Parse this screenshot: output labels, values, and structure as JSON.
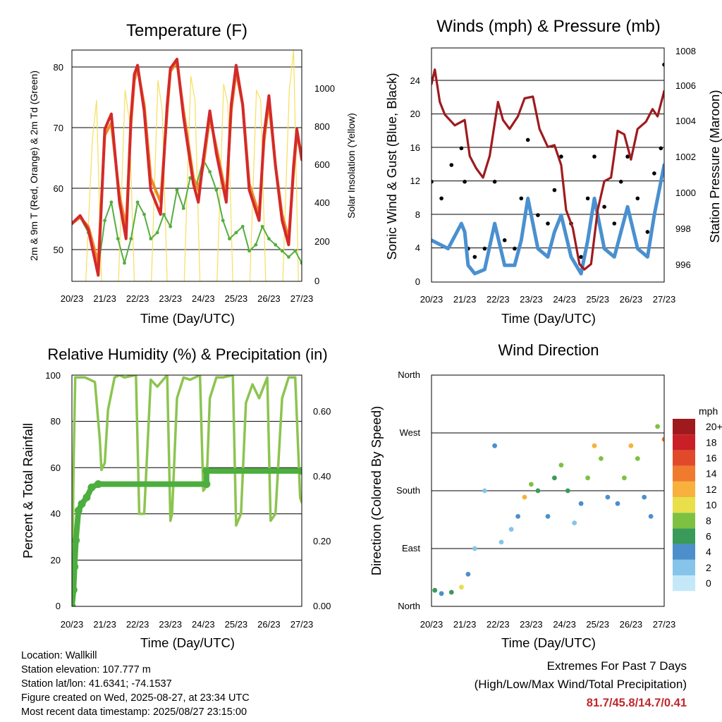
{
  "panels": {
    "temperature": {
      "title": "Temperature (F)",
      "ylabel_left": "2m & 9m T (Red, Orange) & 2m Td (Green)",
      "ylabel_right": "Solar Insolation (Yellow)",
      "xlabel": "Time (Day/UTC)",
      "left_ticks": [
        "50",
        "60",
        "70",
        "80"
      ],
      "right_ticks": [
        "0",
        "200",
        "400",
        "600",
        "800",
        "1000"
      ]
    },
    "winds": {
      "title": "Winds (mph) & Pressure (mb)",
      "ylabel_left": "Sonic Wind & Gust (Blue, Black)",
      "ylabel_right": "Station Pressure (Maroon)",
      "xlabel": "Time (Day/UTC)",
      "left_ticks": [
        "0",
        "4",
        "8",
        "12",
        "16",
        "20",
        "24"
      ],
      "right_ticks": [
        "996",
        "998",
        "1000",
        "1002",
        "1004",
        "1006",
        "1008"
      ]
    },
    "humidity": {
      "title": "Relative Humidity (%) & Precipitation (in)",
      "ylabel_left": "Percent & Total Rainfall",
      "xlabel": "Time (Day/UTC)",
      "left_ticks": [
        "0",
        "20",
        "40",
        "60",
        "80",
        "100"
      ],
      "right_ticks": [
        "0.00",
        "0.20",
        "0.40",
        "0.60"
      ]
    },
    "direction": {
      "title": "Wind Direction",
      "ylabel_left": "Direction (Colored By Speed)",
      "xlabel": "Time (Day/UTC)",
      "left_ticks": [
        "North",
        "East",
        "South",
        "West",
        "North"
      ]
    }
  },
  "time_ticks": [
    "20/23",
    "21/23",
    "22/23",
    "23/23",
    "24/23",
    "25/23",
    "26/23",
    "27/23"
  ],
  "colorbar": {
    "unit": "mph",
    "labels": [
      "0",
      "2",
      "4",
      "6",
      "8",
      "10",
      "12",
      "14",
      "16",
      "18",
      "20+"
    ],
    "colors": [
      "#c4e8f8",
      "#86c4ea",
      "#4c8fcb",
      "#3a9a5a",
      "#7dc142",
      "#e8df4a",
      "#f7b13c",
      "#f07a2d",
      "#e04a2a",
      "#c82026",
      "#9e1a1d"
    ]
  },
  "station_info": {
    "location": "Location: Wallkill",
    "elevation": "Station elevation: 107.777 m",
    "latlon": "Station lat/lon: 41.6341; -74.1537",
    "created": "Figure created on Wed, 2025-08-27, at 23:34 UTC",
    "timestamp": "Most recent data timestamp: 2025/08/27 23:15:00"
  },
  "extremes": {
    "title": "Extremes For Past 7 Days",
    "subtitle": "(High/Low/Max Wind/Total Precipitation)",
    "values": "81.7/45.8/14.7/0.41"
  },
  "chart_data": [
    {
      "type": "line",
      "x_unit": "days since 20/23 UTC",
      "x_range": [
        0,
        7
      ],
      "ylim": [
        45,
        83
      ],
      "y2lim": [
        0,
        1150
      ],
      "series": [
        {
          "name": "2m T",
          "color": "#d42a2a",
          "x": [
            0,
            0.25,
            0.5,
            0.8,
            1.0,
            1.2,
            1.45,
            1.65,
            1.8,
            1.9,
            2.0,
            2.2,
            2.4,
            2.7,
            2.9,
            3.0,
            3.2,
            3.4,
            3.7,
            3.85,
            4.0,
            4.2,
            4.4,
            4.7,
            4.85,
            5.0,
            5.2,
            5.4,
            5.7,
            5.85,
            6.0,
            6.2,
            6.4,
            6.6,
            6.75,
            6.85,
            7.0
          ],
          "y": [
            54.5,
            55.8,
            53.5,
            46,
            70,
            72.5,
            58,
            52,
            72,
            79,
            80.5,
            73,
            60,
            56,
            74,
            80,
            81.5,
            72,
            61,
            58,
            65,
            73,
            66,
            58,
            74,
            80.5,
            74,
            60,
            55,
            69,
            75.5,
            64,
            55,
            51,
            64,
            70,
            65
          ]
        },
        {
          "name": "9m T",
          "color": "#f08a2a",
          "x": [
            0,
            0.25,
            0.5,
            0.8,
            1.0,
            1.2,
            1.45,
            1.65,
            1.8,
            1.9,
            2.0,
            2.2,
            2.4,
            2.7,
            2.9,
            3.0,
            3.2,
            3.4,
            3.7,
            3.85,
            4.0,
            4.2,
            4.4,
            4.7,
            4.85,
            5.0,
            5.2,
            5.4,
            5.7,
            5.85,
            6.0,
            6.2,
            6.4,
            6.6,
            6.75,
            6.85,
            7.0
          ],
          "y": [
            54.5,
            55.5,
            54,
            48,
            69,
            71,
            59,
            54,
            71,
            78,
            80,
            74,
            62,
            58,
            73,
            79.5,
            81,
            73,
            62,
            60,
            64,
            72,
            67,
            59,
            73,
            79.5,
            74,
            61,
            56,
            68,
            74.5,
            64,
            56,
            52,
            63,
            69,
            66
          ]
        },
        {
          "name": "2m Td",
          "color": "#55ad40",
          "x": [
            0,
            0.25,
            0.5,
            0.8,
            1.0,
            1.2,
            1.4,
            1.6,
            1.8,
            2.0,
            2.2,
            2.4,
            2.6,
            2.8,
            3.0,
            3.2,
            3.4,
            3.6,
            3.8,
            4.0,
            4.2,
            4.4,
            4.6,
            4.8,
            5.0,
            5.2,
            5.4,
            5.6,
            5.8,
            6.0,
            6.2,
            6.4,
            6.6,
            6.8,
            7.0
          ],
          "y": [
            54.5,
            55.5,
            53,
            47,
            55,
            58,
            52,
            48,
            52,
            58,
            56,
            52,
            53,
            56,
            54,
            60,
            57,
            62,
            61,
            65,
            63,
            60,
            55,
            52,
            53,
            54,
            50,
            51,
            54,
            52,
            51,
            50,
            49,
            50,
            48
          ]
        },
        {
          "name": "Solar Insolation",
          "axis": "right",
          "color": "#f6df5a",
          "x": [
            0.42,
            0.62,
            0.75,
            0.9,
            1.42,
            1.62,
            1.75,
            1.9,
            2.42,
            2.62,
            2.75,
            2.9,
            3.42,
            3.62,
            3.75,
            3.9,
            4.42,
            4.62,
            4.75,
            4.9,
            5.42,
            5.62,
            5.75,
            5.9,
            6.42,
            6.62,
            6.75,
            6.9
          ],
          "y": [
            0,
            700,
            900,
            0,
            0,
            950,
            800,
            0,
            0,
            1000,
            850,
            0,
            0,
            1020,
            900,
            0,
            0,
            980,
            880,
            0,
            0,
            950,
            900,
            0,
            0,
            950,
            1150,
            0
          ]
        }
      ]
    },
    {
      "type": "scatter",
      "x_unit": "days since 20/23 UTC",
      "x_range": [
        0,
        7
      ],
      "ylim": [
        0,
        28
      ],
      "y2lim": [
        995,
        1008
      ],
      "series": [
        {
          "name": "Sonic Wind",
          "color": "#4a90d0",
          "x": [
            0,
            0.5,
            0.9,
            1.0,
            1.1,
            1.3,
            1.6,
            1.9,
            2.2,
            2.5,
            2.7,
            2.9,
            3.2,
            3.5,
            3.7,
            3.9,
            4.2,
            4.5,
            4.7,
            4.9,
            5.2,
            5.5,
            5.7,
            5.9,
            6.2,
            6.5,
            6.7,
            6.9,
            7.0
          ],
          "y": [
            5,
            4,
            7,
            6,
            2,
            1,
            1.5,
            7,
            2,
            2,
            5,
            10,
            4,
            3,
            6,
            8,
            3,
            1,
            5,
            10,
            4,
            3,
            6,
            9,
            4,
            3,
            8,
            12,
            14
          ]
        },
        {
          "name": "Gust",
          "color": "#000000",
          "x": [
            0,
            0.3,
            0.6,
            0.9,
            1.0,
            1.1,
            1.3,
            1.6,
            1.9,
            2.2,
            2.5,
            2.7,
            2.9,
            3.2,
            3.5,
            3.7,
            3.9,
            4.2,
            4.5,
            4.7,
            4.9,
            5.2,
            5.5,
            5.7,
            5.9,
            6.2,
            6.5,
            6.7,
            6.9,
            7.0
          ],
          "y": [
            12,
            10,
            14,
            16,
            12,
            4,
            3,
            4,
            12,
            5,
            4,
            10,
            17,
            8,
            7,
            11,
            15,
            7,
            3,
            10,
            15,
            9,
            7,
            12,
            15,
            10,
            6,
            13,
            16,
            26
          ]
        },
        {
          "name": "Station Pressure",
          "axis": "right",
          "color": "#9e1b1e",
          "x": [
            0,
            0.1,
            0.25,
            0.4,
            0.7,
            1.0,
            1.15,
            1.35,
            1.55,
            1.75,
            2.0,
            2.15,
            2.35,
            2.6,
            2.8,
            3.05,
            3.25,
            3.5,
            3.7,
            3.9,
            4.05,
            4.25,
            4.45,
            4.6,
            4.8,
            5.0,
            5.2,
            5.4,
            5.6,
            5.8,
            6.0,
            6.2,
            6.45,
            6.65,
            6.8,
            7.0
          ],
          "y": [
            1006,
            1006.8,
            1005,
            1004.3,
            1003.7,
            1004,
            1002,
            1001.3,
            1000.8,
            1002,
            1005,
            1004,
            1003.5,
            1004.2,
            1005.2,
            1005.3,
            1003.5,
            1002.5,
            1002.6,
            1001.5,
            999,
            998,
            996,
            995.7,
            996,
            999,
            1000.6,
            1000.8,
            1003.4,
            1003.2,
            1001.8,
            1003.5,
            1003.9,
            1004.6,
            1004.2,
            1005.6
          ]
        }
      ]
    },
    {
      "type": "line",
      "x_unit": "days since 20/23 UTC",
      "x_range": [
        0,
        7
      ],
      "ylim": [
        0,
        100
      ],
      "y2lim": [
        0,
        0.7
      ],
      "series": [
        {
          "name": "Relative Humidity",
          "color": "#8cc450",
          "x": [
            0,
            0.05,
            0.1,
            0.4,
            0.7,
            0.85,
            0.9,
            1.0,
            1.1,
            1.3,
            1.45,
            1.6,
            1.95,
            2.05,
            2.2,
            2.4,
            2.6,
            2.9,
            3.0,
            3.05,
            3.2,
            3.4,
            3.6,
            3.9,
            4.0,
            4.1,
            4.2,
            4.4,
            4.6,
            4.9,
            5.0,
            5.15,
            5.3,
            5.5,
            5.7,
            5.95,
            6.05,
            6.2,
            6.4,
            6.6,
            6.8,
            6.95,
            7.0
          ],
          "y": [
            0,
            60,
            99,
            99,
            97,
            72,
            59,
            62,
            85,
            99,
            100,
            99,
            100,
            40,
            40,
            98,
            95,
            100,
            37,
            40,
            90,
            99,
            98,
            100,
            50,
            52,
            90,
            99,
            99,
            100,
            35,
            40,
            88,
            96,
            90,
            99,
            37,
            40,
            90,
            99,
            99,
            47,
            45
          ]
        },
        {
          "name": "Total Rainfall",
          "axis": "right",
          "color": "#4cae3e",
          "x": [
            0,
            0.05,
            0.08,
            0.12,
            0.2,
            0.3,
            0.45,
            0.6,
            0.8,
            4.1,
            4.1,
            7.0
          ],
          "y": [
            0,
            0.05,
            0.12,
            0.2,
            0.29,
            0.31,
            0.33,
            0.36,
            0.37,
            0.37,
            0.41,
            0.41
          ]
        }
      ]
    },
    {
      "type": "scatter",
      "x_unit": "days since 20/23 UTC",
      "x_range": [
        0,
        7
      ],
      "ylim": [
        0,
        360
      ],
      "y_tick_labels": [
        "North",
        "East",
        "South",
        "West",
        "North"
      ],
      "color_unit": "mph",
      "series": [
        {
          "name": "Wind Direction",
          "x": [
            0.1,
            0.3,
            0.6,
            0.9,
            1.1,
            1.3,
            1.6,
            1.9,
            2.1,
            2.4,
            2.6,
            2.8,
            3.0,
            3.2,
            3.5,
            3.7,
            3.9,
            4.1,
            4.3,
            4.5,
            4.7,
            4.9,
            5.1,
            5.3,
            5.6,
            5.8,
            6.0,
            6.2,
            6.4,
            6.6,
            6.8,
            7.0
          ],
          "y": [
            25,
            20,
            22,
            30,
            50,
            90,
            180,
            250,
            100,
            120,
            140,
            170,
            190,
            180,
            140,
            200,
            220,
            180,
            130,
            160,
            200,
            250,
            230,
            170,
            160,
            200,
            250,
            230,
            170,
            140,
            280,
            260
          ],
          "speed": [
            6,
            4,
            6,
            10,
            4,
            2,
            2,
            4,
            2,
            2,
            4,
            12,
            8,
            6,
            4,
            6,
            8,
            6,
            2,
            4,
            8,
            12,
            8,
            4,
            4,
            8,
            12,
            8,
            4,
            4,
            8,
            14
          ]
        }
      ]
    }
  ]
}
